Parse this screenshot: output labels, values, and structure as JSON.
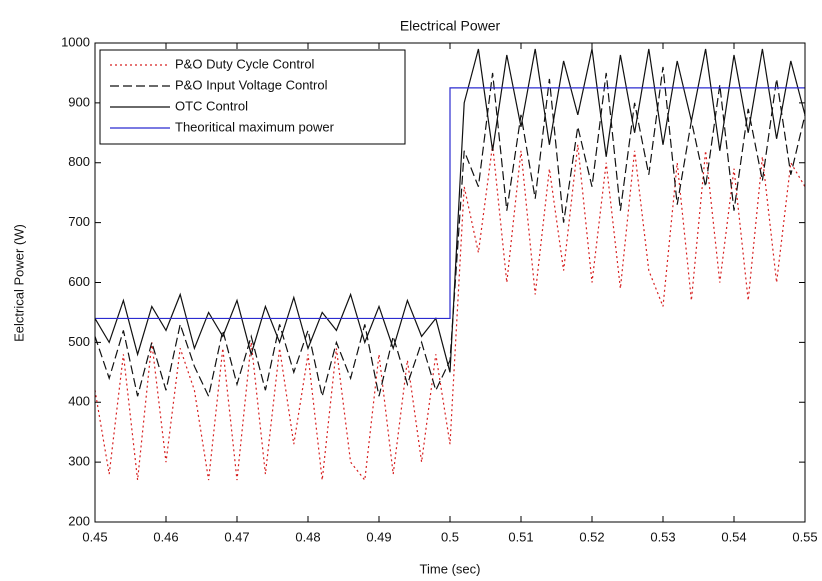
{
  "chart_data": {
    "type": "line",
    "title": "Electrical Power",
    "xlabel": "Time (sec)",
    "ylabel": "Eelctrical Power (W)",
    "x": [
      0.45,
      0.452,
      0.454,
      0.456,
      0.458,
      0.46,
      0.462,
      0.464,
      0.466,
      0.468,
      0.47,
      0.472,
      0.474,
      0.476,
      0.478,
      0.48,
      0.482,
      0.484,
      0.486,
      0.488,
      0.49,
      0.492,
      0.494,
      0.496,
      0.498,
      0.5,
      0.502,
      0.504,
      0.506,
      0.508,
      0.51,
      0.512,
      0.514,
      0.516,
      0.518,
      0.52,
      0.522,
      0.524,
      0.526,
      0.528,
      0.53,
      0.532,
      0.534,
      0.536,
      0.538,
      0.54,
      0.542,
      0.544,
      0.546,
      0.548,
      0.55
    ],
    "series": [
      {
        "name": "P&O Duty Cycle Control",
        "color": "#d62020",
        "style": "dotted",
        "values": [
          420,
          280,
          480,
          270,
          500,
          300,
          490,
          420,
          270,
          490,
          270,
          500,
          280,
          490,
          330,
          480,
          270,
          490,
          300,
          270,
          480,
          280,
          470,
          300,
          480,
          330,
          760,
          650,
          830,
          600,
          820,
          580,
          790,
          620,
          830,
          600,
          800,
          590,
          820,
          620,
          560,
          800,
          570,
          820,
          600,
          790,
          570,
          810,
          600,
          800,
          760
        ]
      },
      {
        "name": "P&O Input Voltage Control",
        "color": "#111111",
        "style": "dashed",
        "values": [
          510,
          440,
          520,
          410,
          500,
          420,
          530,
          460,
          410,
          520,
          430,
          510,
          420,
          530,
          450,
          520,
          410,
          500,
          440,
          530,
          410,
          510,
          430,
          500,
          420,
          470,
          820,
          760,
          950,
          720,
          880,
          740,
          940,
          700,
          860,
          760,
          950,
          720,
          900,
          780,
          960,
          730,
          870,
          760,
          930,
          720,
          890,
          770,
          940,
          780,
          880
        ]
      },
      {
        "name": "OTC Control",
        "color": "#111111",
        "style": "solid",
        "values": [
          540,
          500,
          570,
          480,
          560,
          520,
          580,
          490,
          550,
          510,
          570,
          480,
          560,
          500,
          575,
          490,
          550,
          520,
          580,
          500,
          560,
          490,
          570,
          510,
          540,
          450,
          900,
          990,
          820,
          980,
          860,
          990,
          830,
          970,
          880,
          990,
          810,
          980,
          850,
          990,
          830,
          970,
          870,
          990,
          820,
          980,
          850,
          990,
          840,
          970,
          880
        ]
      },
      {
        "name": "Theoritical maximum power",
        "color": "#2b2bd0",
        "style": "solid",
        "x": [
          0.45,
          0.5,
          0.5,
          0.55
        ],
        "values": [
          540,
          540,
          925,
          925
        ]
      }
    ],
    "xlim": [
      0.45,
      0.55
    ],
    "ylim": [
      200,
      1000
    ],
    "xticks": [
      0.45,
      0.46,
      0.47,
      0.48,
      0.49,
      0.5,
      0.51,
      0.52,
      0.53,
      0.54,
      0.55
    ],
    "yticks": [
      200,
      300,
      400,
      500,
      600,
      700,
      800,
      900,
      1000
    ],
    "grid": false,
    "legend": "upper left"
  }
}
